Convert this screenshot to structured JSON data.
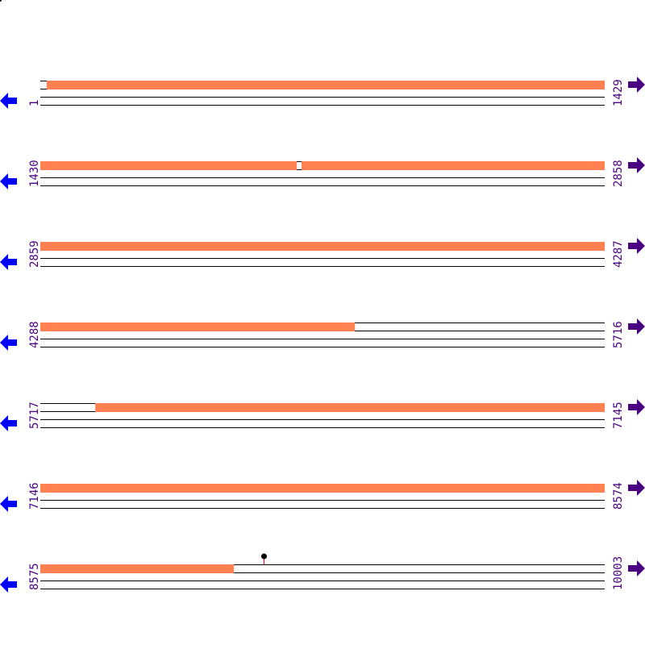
{
  "colors": {
    "feature": "#ff8050",
    "line": "#000000",
    "left_arrow": "#0000ff",
    "right_arrow": "#4b0082",
    "label": "#4b0082",
    "marker_stem": "#ff0000"
  },
  "icons": {
    "left": "arrow-left-icon",
    "right": "arrow-right-icon"
  },
  "rows": [
    {
      "start": "1",
      "end": "1429",
      "s": 1,
      "e": 1429,
      "features": [
        [
          17,
          1429
        ]
      ]
    },
    {
      "start": "1430",
      "end": "2858",
      "s": 1430,
      "e": 2858,
      "features": [
        [
          1430,
          2079
        ],
        [
          2091,
          2858
        ]
      ]
    },
    {
      "start": "2859",
      "end": "4287",
      "s": 2859,
      "e": 4287,
      "features": [
        [
          2859,
          4287
        ]
      ]
    },
    {
      "start": "4288",
      "end": "5716",
      "s": 4288,
      "e": 5716,
      "features": [
        [
          4288,
          5084
        ]
      ]
    },
    {
      "start": "5717",
      "end": "7145",
      "s": 5717,
      "e": 7145,
      "features": [
        [
          5856,
          7145
        ]
      ]
    },
    {
      "start": "7146",
      "end": "8574",
      "s": 7146,
      "e": 8574,
      "features": [
        [
          7146,
          8574
        ]
      ]
    },
    {
      "start": "8575",
      "end": "10003",
      "s": 8575,
      "e": 10003,
      "features": [
        [
          8575,
          9065
        ]
      ],
      "markers": [
        9140
      ]
    }
  ]
}
